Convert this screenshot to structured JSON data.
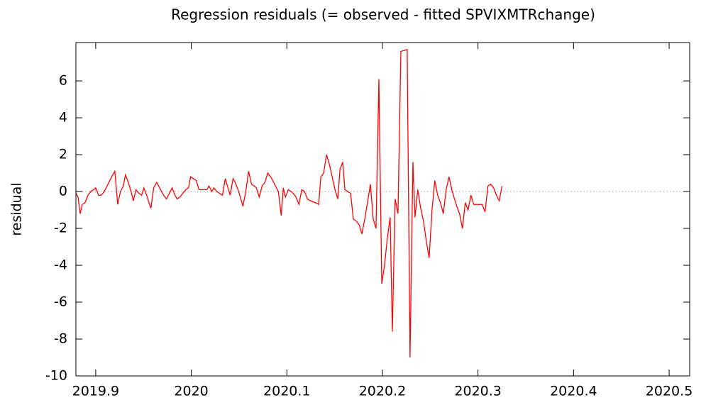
{
  "chart_data": {
    "type": "line",
    "title": "Regression residuals (= observed - fitted SPVIXMTRchange)",
    "y_label": "residual",
    "xlim": [
      2019.8793,
      2020.5215
    ],
    "ylim": [
      -10,
      8.08
    ],
    "xticks": [
      2019.9,
      2020,
      2020.1,
      2020.2,
      2020.3,
      2020.4,
      2020.5
    ],
    "yticks": [
      -10,
      -8,
      -6,
      -4,
      -2,
      0,
      2,
      4,
      6
    ],
    "zero_line": true,
    "series": [
      {
        "color": "#ff0000",
        "x": [
          2019.8793,
          2019.8815,
          2019.8837,
          2019.8859,
          2019.8889,
          2019.8919,
          2019.8948,
          2019.8978,
          2019.9,
          2019.903,
          2019.9059,
          2019.9089,
          2019.9119,
          2019.9148,
          2019.9178,
          2019.92,
          2019.923,
          2019.9259,
          2019.9289,
          2019.9311,
          2019.9341,
          2019.937,
          2019.9393,
          2019.9422,
          2019.9452,
          2019.9481,
          2019.9504,
          2019.9533,
          2019.9556,
          2019.9578,
          2019.9607,
          2019.9637,
          2019.9659,
          2019.9689,
          2019.9711,
          2019.9741,
          2019.98,
          2019.983,
          2019.9852,
          2019.9881,
          2019.9911,
          2019.9941,
          2019.997,
          2019.9993,
          2020.0022,
          2020.0052,
          2020.0081,
          2020.0111,
          2020.0163,
          2020.0185,
          2020.0215,
          2020.0237,
          2020.0267,
          2020.0296,
          2020.0326,
          2020.0356,
          2020.0378,
          2020.0407,
          2020.0437,
          2020.0459,
          2020.0489,
          2020.0519,
          2020.0541,
          2020.057,
          2020.06,
          2020.063,
          2020.0659,
          2020.0681,
          2020.0711,
          2020.0741,
          2020.077,
          2020.08,
          2020.083,
          2020.0852,
          2020.0881,
          2020.0911,
          2020.0941,
          2020.0963,
          2020.0985,
          2020.1015,
          2020.1044,
          2020.1067,
          2020.1096,
          2020.1126,
          2020.1156,
          2020.1185,
          2020.1215,
          2020.1244,
          2020.1296,
          2020.1333,
          2020.1356,
          2020.1385,
          2020.1415,
          2020.1444,
          2020.1474,
          2020.1504,
          2020.1533,
          2020.1556,
          2020.1585,
          2020.1607,
          2020.1637,
          2020.1667,
          2020.1696,
          2020.1726,
          2020.1756,
          2020.1785,
          2020.1815,
          2020.1844,
          2020.1874,
          2020.1904,
          2020.1933,
          2020.1963,
          2020.1993,
          2020.2022,
          2020.2052,
          2020.2081,
          2020.2104,
          2020.2133,
          2020.2163,
          2020.2193,
          2020.2259,
          2020.2289,
          2020.2319,
          2020.2341,
          2020.237,
          2020.24,
          2020.243,
          2020.2459,
          2020.2489,
          2020.2519,
          2020.2548,
          2020.2578,
          2020.2607,
          2020.2637,
          2020.2667,
          2020.2696,
          2020.2726,
          2020.2748,
          2020.2778,
          2020.2807,
          2020.2837,
          2020.2867,
          2020.2896,
          2020.2926,
          2020.2956,
          2020.2985,
          2020.3015,
          2020.3044,
          2020.3074,
          2020.3104,
          2020.3133,
          2020.3163,
          2020.3193,
          2020.3222,
          2020.3252
        ],
        "values": [
          -0.1,
          -0.3,
          -1.2,
          -0.7,
          -0.6,
          -0.2,
          0,
          0.1,
          0.2,
          -0.2,
          -0.2,
          0,
          0.3,
          0.6,
          0.9,
          1.1,
          -0.7,
          0,
          0.3,
          0.9,
          0.5,
          0,
          -0.5,
          0.1,
          -0.1,
          -0.2,
          0.2,
          -0.2,
          -0.6,
          -0.9,
          0.2,
          0.5,
          0.3,
          0,
          -0.2,
          -0.4,
          0.2,
          -0.2,
          -0.4,
          -0.3,
          -0.1,
          0.1,
          0.2,
          0.8,
          0.7,
          0.6,
          0.1,
          0.1,
          0.1,
          0.3,
          0,
          0.2,
          0,
          -0.1,
          -0.2,
          0.7,
          0.3,
          -0.2,
          0.7,
          0.5,
          0.1,
          -0.4,
          -0.8,
          0,
          1.1,
          0.4,
          0.3,
          0.2,
          -0.3,
          0.3,
          0.5,
          1,
          0.8,
          0.6,
          0.3,
          0,
          -1.3,
          0.2,
          -0.3,
          0.1,
          0,
          -0.1,
          -0.3,
          -0.7,
          0.1,
          0,
          -0.4,
          -0.5,
          -0.6,
          -0.7,
          0.8,
          1,
          2,
          1.5,
          0.8,
          0.1,
          -0.4,
          1.2,
          1.6,
          0.1,
          0,
          -0.1,
          -1.5,
          -1.6,
          -1.8,
          -2.3,
          -1.5,
          -0.6,
          0.4,
          -1.5,
          -2,
          6.1,
          -5,
          -4,
          -2.5,
          -1.4,
          -7.6,
          -0.4,
          -1.2,
          7.6,
          7.7,
          -9,
          1.6,
          -1.4,
          0.1,
          -0.9,
          -1.6,
          -2.7,
          -3.6,
          -1,
          0.6,
          -0.2,
          -0.6,
          -1.2,
          0.1,
          0.8,
          0.1,
          -0.3,
          -0.8,
          -1.2,
          -2,
          -0.6,
          -1,
          -0.2,
          -0.7,
          -0.7,
          -0.7,
          -0.7,
          -1.1,
          0.3,
          0.4,
          0.2,
          -0.2,
          -0.5,
          0.3
        ]
      }
    ]
  }
}
